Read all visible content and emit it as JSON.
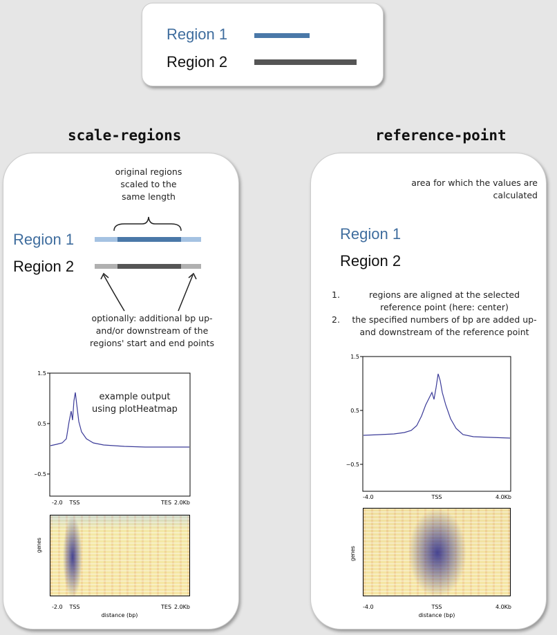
{
  "legend": {
    "region1_label": "Region 1",
    "region2_label": "Region 2",
    "region1_color": "#4a78a8",
    "region2_color": "#555555"
  },
  "scale_regions": {
    "title": "scale-regions",
    "annotation_top": "original regions scaled to the same length",
    "region1_label": "Region 1",
    "region2_label": "Region 2",
    "annotation_bottom": "optionally: additional bp up- and/or downstream of the regions' start and end points",
    "example_note": "example output using plotHeatmap",
    "profile": {
      "y_ticks": [
        "1.5",
        "0.5",
        "−0.5"
      ],
      "x_ticks": [
        "-2.0",
        "TSS",
        "TES",
        "2.0Kb"
      ]
    },
    "heatmap": {
      "y_label": "genes",
      "x_ticks": [
        "-2.0",
        "TSS",
        "TES",
        "2.0Kb"
      ],
      "x_label": "distance (bp)"
    }
  },
  "reference_point": {
    "title": "reference-point",
    "annotation_top": "area for which the values are calculated",
    "region1_label": "Region 1",
    "region2_label": "Region 2",
    "steps": [
      {
        "num": "1.",
        "text": "regions are aligned at the selected reference point (here: center)"
      },
      {
        "num": "2.",
        "text": "the specified numbers of bp are added up- and downstream of the reference point"
      }
    ],
    "profile": {
      "y_ticks": [
        "1.5",
        "0.5",
        "−0.5"
      ],
      "x_ticks": [
        "-4.0",
        "TSS",
        "4.0Kb"
      ]
    },
    "heatmap": {
      "y_label": "genes",
      "x_ticks": [
        "-4.0",
        "TSS",
        "4.0Kb"
      ],
      "x_label": "distance (bp)"
    }
  }
}
